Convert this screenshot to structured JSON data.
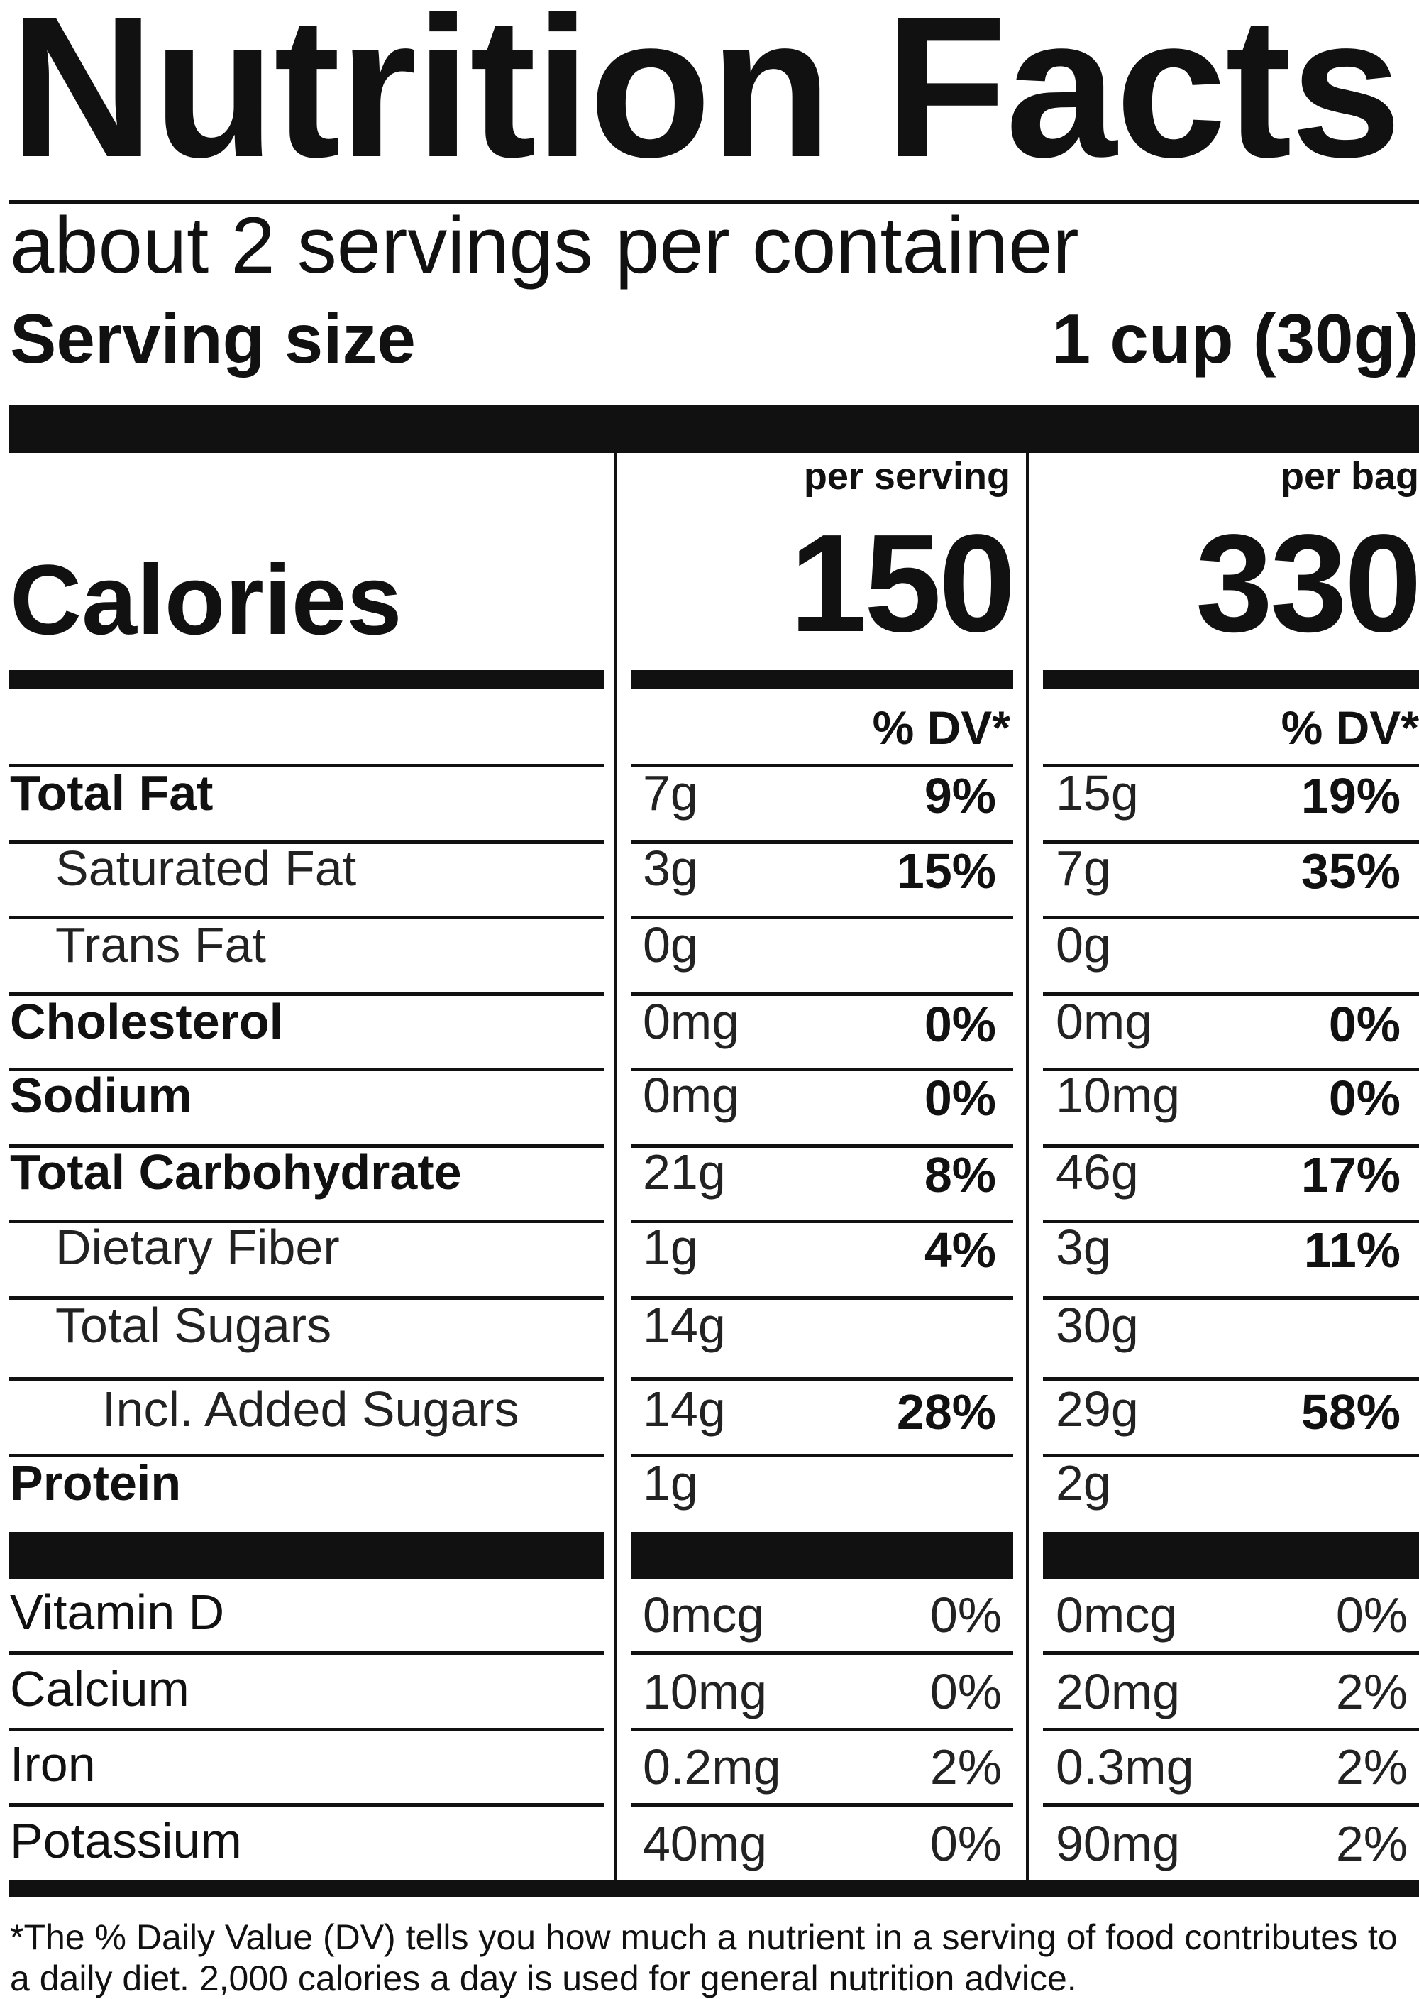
{
  "title": "Nutrition Facts",
  "servings_per_container": "about 2 servings per container",
  "serving_size": {
    "label": "Serving size",
    "value": "1 cup (30g)"
  },
  "calories": {
    "label": "Calories",
    "per_serving_label": "per serving",
    "per_serving": "150",
    "per_bag_label": "per bag",
    "per_bag": "330"
  },
  "dv_header": "% DV*",
  "nutrients": [
    {
      "name": "Total Fat",
      "bold": true,
      "indent": 0,
      "serving": "7g",
      "serving_dv": "9%",
      "bag": "15g",
      "bag_dv": "19%"
    },
    {
      "name": "Saturated Fat",
      "bold": false,
      "indent": 1,
      "serving": "3g",
      "serving_dv": "15%",
      "bag": "7g",
      "bag_dv": "35%"
    },
    {
      "name": "Trans Fat",
      "bold": false,
      "indent": 1,
      "serving": "0g",
      "serving_dv": "",
      "bag": "0g",
      "bag_dv": ""
    },
    {
      "name": "Cholesterol",
      "bold": true,
      "indent": 0,
      "serving": "0mg",
      "serving_dv": "0%",
      "bag": "0mg",
      "bag_dv": "0%"
    },
    {
      "name": "Sodium",
      "bold": true,
      "indent": 0,
      "serving": "0mg",
      "serving_dv": "0%",
      "bag": "10mg",
      "bag_dv": "0%"
    },
    {
      "name": "Total Carbohydrate",
      "bold": true,
      "indent": 0,
      "serving": "21g",
      "serving_dv": "8%",
      "bag": "46g",
      "bag_dv": "17%"
    },
    {
      "name": "Dietary Fiber",
      "bold": false,
      "indent": 1,
      "serving": "1g",
      "serving_dv": "4%",
      "bag": "3g",
      "bag_dv": "11%"
    },
    {
      "name": "Total Sugars",
      "bold": false,
      "indent": 1,
      "serving": "14g",
      "serving_dv": "",
      "bag": "30g",
      "bag_dv": ""
    },
    {
      "name": "Incl. Added Sugars",
      "bold": false,
      "indent": 2,
      "serving": "14g",
      "serving_dv": "28%",
      "bag": "29g",
      "bag_dv": "58%"
    },
    {
      "name": "Protein",
      "bold": true,
      "indent": 0,
      "serving": "1g",
      "serving_dv": "",
      "bag": "2g",
      "bag_dv": ""
    }
  ],
  "micronutrients": [
    {
      "name": "Vitamin D",
      "serving": "0mcg",
      "serving_dv": "0%",
      "bag": "0mcg",
      "bag_dv": "0%"
    },
    {
      "name": "Calcium",
      "serving": "10mg",
      "serving_dv": "0%",
      "bag": "20mg",
      "bag_dv": "2%"
    },
    {
      "name": "Iron",
      "serving": "0.2mg",
      "serving_dv": "2%",
      "bag": "0.3mg",
      "bag_dv": "2%"
    },
    {
      "name": "Potassium",
      "serving": "40mg",
      "serving_dv": "0%",
      "bag": "90mg",
      "bag_dv": "2%"
    }
  ],
  "footnote": "*The % Daily Value (DV) tells you how much a nutrient in a serving of food contributes to a daily diet. 2,000 calories a day is used for general nutrition advice."
}
